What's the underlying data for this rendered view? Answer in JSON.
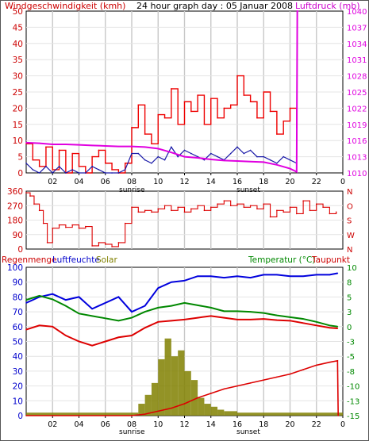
{
  "header": {
    "wind_title": "Windgeschwindigkeit (kmh)",
    "subtitle": "24 hour graph day : 05 Januar 2008",
    "pressure_title": "Luftdruck (mb)"
  },
  "labels": {
    "sunrise": "sunrise",
    "sunset": "sunset",
    "rain": "Regenmenge",
    "humidity": "Luftfeuchte",
    "solar": "Solar",
    "temperature": "Temperatur (°C)",
    "dewpoint": "Taupunkt"
  },
  "colors": {
    "wind": "#ee0000",
    "gust": "#1a1aa8",
    "pressure": "#e000e0",
    "direction": "#dd0000",
    "humidity": "#0000dd",
    "temperature": "#008800",
    "dewpoint": "#dd0000",
    "rain": "#dd0000",
    "solar": "#808000",
    "grid": "#c8c8c8",
    "axis_text": "#cc0000",
    "panel_border": "#000000"
  },
  "chart_data": [
    {
      "type": "line",
      "name": "wind-pressure",
      "xlim": [
        0,
        24
      ],
      "ylim": [
        0,
        50
      ],
      "y_right_lim": [
        1010,
        1040
      ],
      "x_ticks": [
        "02",
        "04",
        "06",
        "08",
        "10",
        "12",
        "14",
        "16",
        "18",
        "20",
        "22",
        "0"
      ],
      "y_ticks": [
        "0",
        "5",
        "10",
        "15",
        "20",
        "25",
        "30",
        "35",
        "40",
        "45",
        "50"
      ],
      "y_right_ticks": [
        "1010",
        "1013",
        "1016",
        "1019",
        "1022",
        "1025",
        "1028",
        "1031",
        "1034",
        "1037",
        "1040"
      ],
      "series": [
        {
          "name": "Windgeschwindigkeit",
          "x": [
            0,
            0.5,
            1,
            1.5,
            2,
            2.5,
            3,
            3.5,
            4,
            4.5,
            5,
            5.5,
            6,
            6.5,
            7,
            7.5,
            8,
            8.5,
            9,
            9.5,
            10,
            10.5,
            11,
            11.5,
            12,
            12.5,
            13,
            13.5,
            14,
            14.5,
            15,
            15.5,
            16,
            16.5,
            17,
            17.5,
            18,
            18.5,
            19,
            19.5,
            20,
            20.5
          ],
          "y": [
            9,
            4,
            2,
            8,
            1,
            7,
            0,
            6,
            2,
            0,
            5,
            7,
            3,
            1,
            0,
            3,
            14,
            21,
            12,
            9,
            18,
            17,
            26,
            15,
            22,
            19,
            24,
            15,
            23,
            17,
            20,
            21,
            30,
            24,
            22,
            17,
            25,
            19,
            12,
            16,
            20,
            14
          ]
        },
        {
          "name": "Windspitze",
          "x": [
            0,
            0.5,
            1,
            1.5,
            2,
            2.5,
            3,
            3.5,
            4,
            4.5,
            5,
            5.5,
            6,
            6.5,
            7,
            7.5,
            8,
            8.5,
            9,
            9.5,
            10,
            10.5,
            11,
            11.5,
            12,
            12.5,
            13,
            13.5,
            14,
            14.5,
            15,
            15.5,
            16,
            16.5,
            17,
            17.5,
            18,
            18.5,
            19,
            19.5,
            20,
            20.5
          ],
          "y": [
            3,
            1,
            0,
            2,
            0,
            2,
            0,
            1,
            0,
            0,
            2,
            1,
            0,
            0,
            0,
            1,
            6,
            6,
            4,
            3,
            5,
            4,
            8,
            5,
            7,
            6,
            5,
            4,
            6,
            5,
            4,
            6,
            8,
            6,
            7,
            5,
            5,
            4,
            3,
            5,
            4,
            3
          ]
        },
        {
          "name": "Luftdruck",
          "x": [
            0,
            1,
            2,
            3,
            4,
            5,
            6,
            7,
            8,
            9,
            10,
            11,
            12,
            13,
            14,
            15,
            16,
            17,
            18,
            19,
            20,
            20.5,
            20.55,
            20.6
          ],
          "y": [
            1015.6,
            1015.5,
            1015.3,
            1015.3,
            1015.2,
            1015.1,
            1015.0,
            1014.9,
            1014.9,
            1014.8,
            1014.5,
            1013.8,
            1013.0,
            1012.8,
            1012.5,
            1012.3,
            1012.2,
            1012.1,
            1012.0,
            1011.5,
            1010.8,
            1010.2,
            1040,
            1040
          ]
        }
      ],
      "annotations": [
        "sunrise",
        "sunset"
      ]
    },
    {
      "type": "scatter",
      "name": "wind-direction",
      "xlim": [
        0,
        24
      ],
      "ylim": [
        0,
        360
      ],
      "y_ticks": [
        "0",
        "90",
        "180",
        "270",
        "360"
      ],
      "y_right_ticks": [
        "N",
        "W",
        "S",
        "O",
        "N"
      ],
      "series": [
        {
          "name": "Windrichtung",
          "x": [
            0,
            0.3,
            0.6,
            1,
            1.3,
            1.6,
            2,
            2.5,
            3,
            3.5,
            4,
            4.5,
            5,
            5.5,
            6,
            6.5,
            7,
            7.5,
            8,
            8.5,
            9,
            9.5,
            10,
            10.5,
            11,
            11.5,
            12,
            12.5,
            13,
            13.5,
            14,
            14.5,
            15,
            15.5,
            16,
            16.5,
            17,
            17.5,
            18,
            18.5,
            19,
            19.5,
            20,
            20.5,
            21,
            21.5,
            22,
            22.5,
            23,
            23.5
          ],
          "y": [
            350,
            330,
            280,
            240,
            160,
            40,
            130,
            150,
            135,
            150,
            130,
            140,
            20,
            40,
            30,
            15,
            40,
            160,
            260,
            230,
            240,
            230,
            250,
            270,
            240,
            260,
            230,
            250,
            270,
            240,
            260,
            280,
            300,
            270,
            280,
            260,
            270,
            250,
            280,
            200,
            240,
            230,
            260,
            220,
            300,
            240,
            280,
            260,
            220,
            230
          ]
        }
      ]
    },
    {
      "type": "line",
      "name": "rain-humidity-temperature",
      "xlim": [
        0,
        24
      ],
      "ylim": [
        0,
        100
      ],
      "y_right_lim": [
        -15,
        10
      ],
      "y_ticks": [
        "0",
        "10",
        "20",
        "30",
        "40",
        "50",
        "60",
        "70",
        "80",
        "90",
        "100"
      ],
      "y_right_ticks": [
        "-15",
        "-13",
        "-10",
        "-8",
        "-5",
        "-3",
        "0",
        "3",
        "5",
        "8",
        "10"
      ],
      "series": [
        {
          "name": "Luftfeuchte",
          "x": [
            0,
            1,
            2,
            3,
            4,
            5,
            6,
            7,
            8,
            9,
            10,
            11,
            12,
            13,
            14,
            15,
            16,
            17,
            18,
            19,
            20,
            21,
            22,
            23,
            23.6
          ],
          "y": [
            76,
            80,
            82,
            78,
            80,
            72,
            76,
            80,
            70,
            74,
            86,
            90,
            91,
            94,
            94,
            93,
            94,
            93,
            95,
            95,
            94,
            94,
            95,
            95,
            96
          ]
        },
        {
          "name": "Temperatur",
          "x": [
            0,
            1,
            2,
            3,
            4,
            5,
            6,
            7,
            8,
            9,
            10,
            11,
            12,
            13,
            14,
            15,
            16,
            17,
            18,
            19,
            20,
            21,
            22,
            23,
            23.6
          ],
          "y": [
            4.5,
            5.2,
            4.6,
            3.5,
            2.2,
            1.8,
            1.4,
            1.0,
            1.5,
            2.5,
            3.2,
            3.5,
            4.0,
            3.6,
            3.2,
            2.6,
            2.6,
            2.5,
            2.3,
            1.9,
            1.6,
            1.3,
            0.8,
            0.2,
            0.0
          ]
        },
        {
          "name": "Taupunkt",
          "x": [
            0,
            1,
            2,
            3,
            4,
            5,
            6,
            7,
            8,
            9,
            10,
            11,
            12,
            13,
            14,
            15,
            16,
            17,
            18,
            19,
            20,
            21,
            22,
            23,
            23.6
          ],
          "y": [
            -0.5,
            0.2,
            0.0,
            -1.5,
            -2.5,
            -3.2,
            -2.5,
            -1.8,
            -1.5,
            -0.2,
            0.8,
            1.0,
            1.2,
            1.5,
            1.8,
            1.5,
            1.2,
            1.2,
            1.3,
            1.1,
            1.0,
            0.6,
            0.2,
            -0.2,
            -0.3
          ]
        },
        {
          "name": "Regenmenge",
          "x": [
            0,
            8,
            9,
            10,
            11,
            12,
            13,
            14,
            15,
            16,
            17,
            18,
            19,
            20,
            21,
            22,
            23,
            23.6,
            23.65
          ],
          "y": [
            0,
            0,
            1,
            3,
            5,
            8,
            12,
            15,
            18,
            20,
            22,
            24,
            26,
            28,
            31,
            34,
            36,
            37,
            0
          ]
        },
        {
          "name": "Solar",
          "x": [
            0,
            8,
            8.5,
            9,
            9.5,
            10,
            10.5,
            11,
            11.5,
            12,
            12.5,
            13,
            13.5,
            14,
            14.5,
            15,
            16,
            24
          ],
          "y": [
            2,
            2,
            8,
            14,
            22,
            38,
            52,
            40,
            44,
            30,
            24,
            12,
            8,
            6,
            4,
            3,
            2,
            2
          ]
        }
      ],
      "annotations": [
        "sunrise",
        "sunset"
      ]
    }
  ]
}
